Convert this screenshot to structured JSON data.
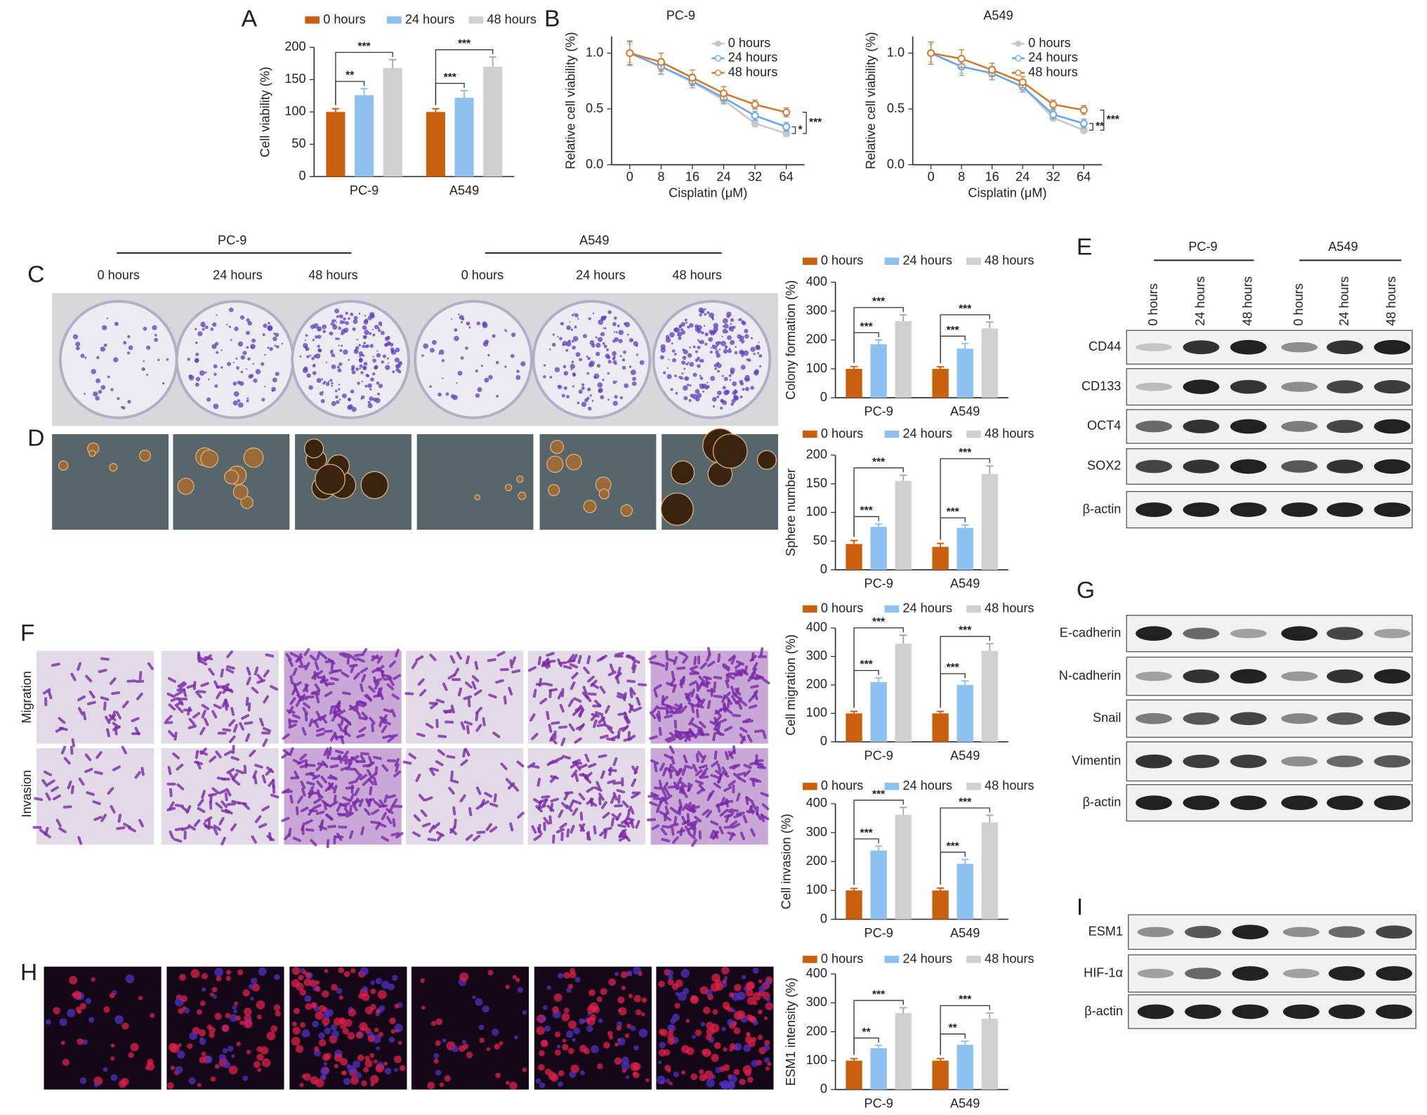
{
  "chart_data": [
    {
      "type": "bar",
      "ylabel": "Cell viability (%)",
      "categories": [
        "PC-9",
        "A549"
      ],
      "series": [
        {
          "name": "0 hours",
          "color": "#c8600f",
          "values": [
            100,
            100
          ],
          "errors": [
            5,
            5
          ]
        },
        {
          "name": "24 hours",
          "color": "#8ec0f0",
          "values": [
            126,
            122
          ],
          "errors": [
            10,
            11
          ]
        },
        {
          "name": "48 hours",
          "color": "#d0d0d0",
          "values": [
            168,
            170
          ],
          "errors": [
            13,
            15
          ]
        }
      ],
      "significance": [
        [
          "**",
          "***"
        ],
        [
          "***",
          "***"
        ]
      ],
      "ylim": [
        0,
        200
      ],
      "yticks": [
        0,
        50,
        100,
        150,
        200
      ]
    },
    {
      "type": "line",
      "title": "PC-9",
      "xlabel": "Cisplatin (μM)",
      "ylabel": "Relative cell viability (%)",
      "categories": [
        "0",
        "8",
        "16",
        "24",
        "32",
        "64"
      ],
      "series": [
        {
          "name": "0 hours",
          "color": "#c8c8c8",
          "values": [
            1.0,
            0.88,
            0.74,
            0.58,
            0.37,
            0.28
          ],
          "errors": [
            0.08,
            0.06,
            0.05,
            0.04,
            0.03,
            0.03
          ]
        },
        {
          "name": "24 hours",
          "color": "#6aa6e8",
          "values": [
            1.0,
            0.88,
            0.75,
            0.6,
            0.44,
            0.34
          ],
          "errors": [
            0.1,
            0.07,
            0.06,
            0.05,
            0.04,
            0.04
          ]
        },
        {
          "name": "48 hours",
          "color": "#d07a30",
          "values": [
            1.0,
            0.92,
            0.78,
            0.64,
            0.54,
            0.47
          ],
          "errors": [
            0.11,
            0.08,
            0.07,
            0.06,
            0.04,
            0.04
          ]
        }
      ],
      "significance": [
        "*",
        "***"
      ],
      "ylim": [
        0,
        1.15
      ],
      "yticks": [
        {
          "value": 0,
          "label": "0.0"
        },
        {
          "value": 0.5,
          "label": "0.5"
        },
        {
          "value": 1,
          "label": "1.0"
        }
      ]
    },
    {
      "type": "line",
      "title": "A549",
      "xlabel": "Cisplatin (μM)",
      "ylabel": "Relative cell viability (%)",
      "categories": [
        "0",
        "8",
        "16",
        "24",
        "32",
        "64"
      ],
      "series": [
        {
          "name": "0 hours",
          "color": "#c8c8c8",
          "values": [
            1.0,
            0.88,
            0.82,
            0.7,
            0.42,
            0.31
          ],
          "errors": [
            0.08,
            0.06,
            0.05,
            0.04,
            0.03,
            0.03
          ]
        },
        {
          "name": "24 hours",
          "color": "#6aa6e8",
          "values": [
            1.0,
            0.88,
            0.82,
            0.7,
            0.45,
            0.37
          ],
          "errors": [
            0.1,
            0.08,
            0.06,
            0.05,
            0.04,
            0.04
          ]
        },
        {
          "name": "48 hours",
          "color": "#d07a30",
          "values": [
            1.0,
            0.95,
            0.85,
            0.74,
            0.54,
            0.49
          ],
          "errors": [
            0.1,
            0.08,
            0.06,
            0.05,
            0.04,
            0.04
          ]
        }
      ],
      "significance": [
        "**",
        "***"
      ],
      "ylim": [
        0,
        1.15
      ],
      "yticks": [
        {
          "value": 0,
          "label": "0.0"
        },
        {
          "value": 0.5,
          "label": "0.5"
        },
        {
          "value": 1,
          "label": "1.0"
        }
      ]
    },
    {
      "type": "bar",
      "ylabel": "Colony formation (%)",
      "categories": [
        "PC-9",
        "A549"
      ],
      "series": [
        {
          "name": "0 hours",
          "color": "#c8600f",
          "values": [
            100,
            100
          ],
          "errors": [
            8,
            7
          ]
        },
        {
          "name": "24 hours",
          "color": "#8ec0f0",
          "values": [
            185,
            170
          ],
          "errors": [
            15,
            18
          ]
        },
        {
          "name": "48 hours",
          "color": "#d0d0d0",
          "values": [
            265,
            240
          ],
          "errors": [
            22,
            22
          ]
        }
      ],
      "significance": [
        [
          "***",
          "***"
        ],
        [
          "***",
          "***"
        ]
      ],
      "ylim": [
        0,
        400
      ],
      "yticks": [
        0,
        100,
        200,
        300,
        400
      ]
    },
    {
      "type": "bar",
      "ylabel": "Sphere number",
      "categories": [
        "PC-9",
        "A549"
      ],
      "series": [
        {
          "name": "0 hours",
          "color": "#c8600f",
          "values": [
            45,
            40
          ],
          "errors": [
            6,
            6
          ]
        },
        {
          "name": "24 hours",
          "color": "#8ec0f0",
          "values": [
            75,
            73
          ],
          "errors": [
            5,
            5
          ]
        },
        {
          "name": "48 hours",
          "color": "#d0d0d0",
          "values": [
            155,
            167
          ],
          "errors": [
            10,
            14
          ]
        }
      ],
      "significance": [
        [
          "***",
          "***"
        ],
        [
          "***",
          "***"
        ]
      ],
      "ylim": [
        0,
        200
      ],
      "yticks": [
        0,
        50,
        100,
        150,
        200
      ]
    },
    {
      "type": "bar",
      "ylabel": "Cell migration (%)",
      "categories": [
        "PC-9",
        "A549"
      ],
      "series": [
        {
          "name": "0 hours",
          "color": "#c8600f",
          "values": [
            100,
            100
          ],
          "errors": [
            7,
            7
          ]
        },
        {
          "name": "24 hours",
          "color": "#8ec0f0",
          "values": [
            210,
            200
          ],
          "errors": [
            15,
            14
          ]
        },
        {
          "name": "48 hours",
          "color": "#d0d0d0",
          "values": [
            345,
            320
          ],
          "errors": [
            30,
            25
          ]
        }
      ],
      "significance": [
        [
          "***",
          "***"
        ],
        [
          "***",
          "***"
        ]
      ],
      "ylim": [
        0,
        400
      ],
      "yticks": [
        0,
        100,
        200,
        300,
        400
      ]
    },
    {
      "type": "bar",
      "ylabel": "Cell invasion (%)",
      "categories": [
        "PC-9",
        "A549"
      ],
      "series": [
        {
          "name": "0 hours",
          "color": "#c8600f",
          "values": [
            100,
            100
          ],
          "errors": [
            7,
            8
          ]
        },
        {
          "name": "24 hours",
          "color": "#8ec0f0",
          "values": [
            238,
            192
          ],
          "errors": [
            15,
            15
          ]
        },
        {
          "name": "48 hours",
          "color": "#d0d0d0",
          "values": [
            362,
            335
          ],
          "errors": [
            25,
            25
          ]
        }
      ],
      "significance": [
        [
          "***",
          "***"
        ],
        [
          "***",
          "***"
        ]
      ],
      "ylim": [
        0,
        400
      ],
      "yticks": [
        0,
        100,
        200,
        300,
        400
      ]
    },
    {
      "type": "bar",
      "ylabel": "ESM1 intensity (%)",
      "categories": [
        "PC-9",
        "A549"
      ],
      "series": [
        {
          "name": "0 hours",
          "color": "#c8600f",
          "values": [
            100,
            100
          ],
          "errors": [
            7,
            7
          ]
        },
        {
          "name": "24 hours",
          "color": "#8ec0f0",
          "values": [
            143,
            155
          ],
          "errors": [
            10,
            12
          ]
        },
        {
          "name": "48 hours",
          "color": "#d0d0d0",
          "values": [
            265,
            245
          ],
          "errors": [
            18,
            20
          ]
        }
      ],
      "significance": [
        [
          "**",
          "***"
        ],
        [
          "**",
          "***"
        ]
      ],
      "ylim": [
        0,
        400
      ],
      "yticks": [
        0,
        100,
        200,
        300,
        400
      ]
    }
  ],
  "figure": {
    "letters": [
      "A",
      "B",
      "C",
      "D",
      "E",
      "F",
      "G",
      "H",
      "I"
    ],
    "image_groups": [
      "PC-9",
      "A549"
    ],
    "image_times": [
      "0 hours",
      "24 hours",
      "48 hours",
      "0 hours",
      "24 hours",
      "48 hours"
    ],
    "transwell_rows": [
      "Migration",
      "Invasion"
    ],
    "blots": [
      {
        "groups": [
          "PC-9",
          "A549"
        ],
        "lanes": [
          "0 hours",
          "24 hours",
          "48 hours",
          "0 hours",
          "24 hours",
          "48 hours"
        ],
        "proteins": [
          "CD44",
          "CD133",
          "OCT4",
          "SOX2",
          "β-actin"
        ]
      },
      {
        "proteins": [
          "E-cadherin",
          "N-cadherin",
          "Snail",
          "Vimentin",
          "β-actin"
        ]
      },
      {
        "proteins": [
          "ESM1",
          "HIF-1α",
          "β-actin"
        ]
      }
    ]
  }
}
